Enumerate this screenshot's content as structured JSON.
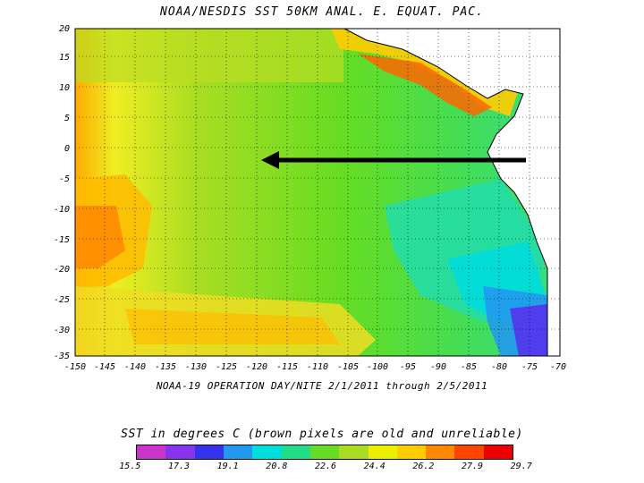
{
  "map": {
    "title": "NOAA/NESDIS SST 50KM ANAL. E. EQUAT. PAC.",
    "subtitle": "NOAA-19 OPERATION DAY/NITE  2/1/2011 through 2/5/2011",
    "legend_title": "SST in degrees C (brown pixels are old and unreliable)",
    "lat_ticks": [
      "20",
      "15",
      "10",
      "5",
      "0",
      "-5",
      "-10",
      "-15",
      "-20",
      "-25",
      "-30",
      "-35"
    ],
    "lon_ticks": [
      "-150",
      "-145",
      "-140",
      "-135",
      "-130",
      "-125",
      "-120",
      "-115",
      "-110",
      "-105",
      "-100",
      "-95",
      "-90",
      "-85",
      "-80",
      "-75",
      "-70"
    ],
    "colorbar_ticks": [
      "15.5",
      "17.3",
      "19.1",
      "20.8",
      "22.6",
      "24.4",
      "26.2",
      "27.9",
      "29.7"
    ],
    "colorbar_colors": [
      "#cc33cc",
      "#8833ee",
      "#3333ee",
      "#2299ee",
      "#00dddd",
      "#22dd88",
      "#66dd22",
      "#aadd22",
      "#eeee00",
      "#ffcc00",
      "#ff8800",
      "#ff4400",
      "#ee0000"
    ]
  }
}
